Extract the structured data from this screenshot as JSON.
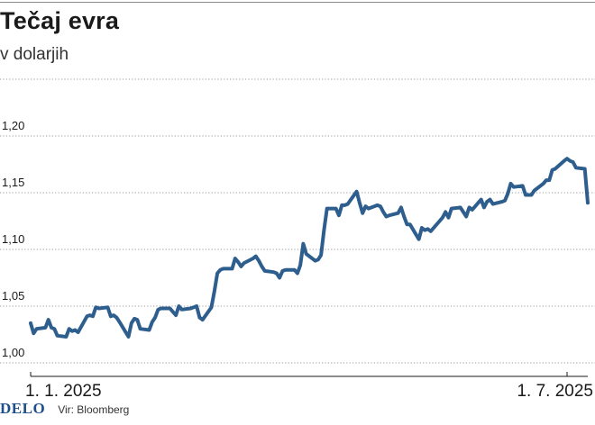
{
  "header": {
    "title": "Tečaj evra",
    "subtitle": "v dolarjih"
  },
  "footer": {
    "logo": "DELO",
    "source": "Vir: Bloomberg"
  },
  "colors": {
    "line": "#2e5e8e",
    "grid": "#7a7a7a",
    "text": "#1a1a1a"
  },
  "chart_data": {
    "type": "line",
    "title": "Tečaj evra",
    "subtitle": "v dolarjih",
    "ylim": [
      1.0,
      1.2
    ],
    "y_ticks": [
      1.0,
      1.05,
      1.1,
      1.15,
      1.2
    ],
    "y_tick_labels": [
      "1,00",
      "1,05",
      "1,10",
      "1,15",
      "1,20"
    ],
    "x_range": [
      "2025-01-01",
      "2025-07-08"
    ],
    "x_ticks": [
      {
        "date": "2025-01-01",
        "label": "1. 1. 2025"
      },
      {
        "date": "2025-07-01",
        "label": "1. 7. 2025"
      }
    ],
    "grid": "horizontal",
    "series": [
      {
        "values": [
          [
            "2025-01-01",
            1.035
          ],
          [
            "2025-01-02",
            1.026
          ],
          [
            "2025-01-03",
            1.03
          ],
          [
            "2025-01-06",
            1.031
          ],
          [
            "2025-01-07",
            1.038
          ],
          [
            "2025-01-08",
            1.031
          ],
          [
            "2025-01-09",
            1.03
          ],
          [
            "2025-01-10",
            1.024
          ],
          [
            "2025-01-13",
            1.023
          ],
          [
            "2025-01-14",
            1.03
          ],
          [
            "2025-01-15",
            1.028
          ],
          [
            "2025-01-16",
            1.029
          ],
          [
            "2025-01-17",
            1.027
          ],
          [
            "2025-01-20",
            1.041
          ],
          [
            "2025-01-21",
            1.042
          ],
          [
            "2025-01-22",
            1.041
          ],
          [
            "2025-01-23",
            1.049
          ],
          [
            "2025-01-24",
            1.048
          ],
          [
            "2025-01-27",
            1.049
          ],
          [
            "2025-01-28",
            1.041
          ],
          [
            "2025-01-29",
            1.042
          ],
          [
            "2025-01-30",
            1.04
          ],
          [
            "2025-01-31",
            1.036
          ],
          [
            "2025-02-03",
            1.023
          ],
          [
            "2025-02-04",
            1.035
          ],
          [
            "2025-02-05",
            1.039
          ],
          [
            "2025-02-06",
            1.038
          ],
          [
            "2025-02-07",
            1.03
          ],
          [
            "2025-02-10",
            1.029
          ],
          [
            "2025-02-11",
            1.036
          ],
          [
            "2025-02-12",
            1.04
          ],
          [
            "2025-02-13",
            1.047
          ],
          [
            "2025-02-14",
            1.048
          ],
          [
            "2025-02-17",
            1.048
          ],
          [
            "2025-02-18",
            1.045
          ],
          [
            "2025-02-19",
            1.042
          ],
          [
            "2025-02-20",
            1.05
          ],
          [
            "2025-02-21",
            1.047
          ],
          [
            "2025-02-24",
            1.048
          ],
          [
            "2025-02-25",
            1.049
          ],
          [
            "2025-02-26",
            1.05
          ],
          [
            "2025-02-27",
            1.04
          ],
          [
            "2025-02-28",
            1.038
          ],
          [
            "2025-03-03",
            1.049
          ],
          [
            "2025-03-04",
            1.063
          ],
          [
            "2025-03-05",
            1.079
          ],
          [
            "2025-03-06",
            1.082
          ],
          [
            "2025-03-07",
            1.083
          ],
          [
            "2025-03-10",
            1.083
          ],
          [
            "2025-03-11",
            1.092
          ],
          [
            "2025-03-12",
            1.089
          ],
          [
            "2025-03-13",
            1.085
          ],
          [
            "2025-03-14",
            1.088
          ],
          [
            "2025-03-17",
            1.092
          ],
          [
            "2025-03-18",
            1.094
          ],
          [
            "2025-03-19",
            1.09
          ],
          [
            "2025-03-20",
            1.085
          ],
          [
            "2025-03-21",
            1.081
          ],
          [
            "2025-03-24",
            1.08
          ],
          [
            "2025-03-25",
            1.079
          ],
          [
            "2025-03-26",
            1.075
          ],
          [
            "2025-03-27",
            1.081
          ],
          [
            "2025-03-28",
            1.082
          ],
          [
            "2025-03-31",
            1.082
          ],
          [
            "2025-04-01",
            1.079
          ],
          [
            "2025-04-02",
            1.086
          ],
          [
            "2025-04-03",
            1.105
          ],
          [
            "2025-04-04",
            1.096
          ],
          [
            "2025-04-07",
            1.09
          ],
          [
            "2025-04-08",
            1.091
          ],
          [
            "2025-04-09",
            1.095
          ],
          [
            "2025-04-10",
            1.117
          ],
          [
            "2025-04-11",
            1.136
          ],
          [
            "2025-04-14",
            1.136
          ],
          [
            "2025-04-15",
            1.13
          ],
          [
            "2025-04-16",
            1.139
          ],
          [
            "2025-04-17",
            1.139
          ],
          [
            "2025-04-18",
            1.14
          ],
          [
            "2025-04-21",
            1.151
          ],
          [
            "2025-04-22",
            1.141
          ],
          [
            "2025-04-23",
            1.132
          ],
          [
            "2025-04-24",
            1.138
          ],
          [
            "2025-04-25",
            1.136
          ],
          [
            "2025-04-28",
            1.139
          ],
          [
            "2025-04-29",
            1.138
          ],
          [
            "2025-04-30",
            1.133
          ],
          [
            "2025-05-01",
            1.129
          ],
          [
            "2025-05-02",
            1.13
          ],
          [
            "2025-05-05",
            1.132
          ],
          [
            "2025-05-06",
            1.137
          ],
          [
            "2025-05-07",
            1.129
          ],
          [
            "2025-05-08",
            1.122
          ],
          [
            "2025-05-09",
            1.122
          ],
          [
            "2025-05-12",
            1.109
          ],
          [
            "2025-05-13",
            1.119
          ],
          [
            "2025-05-14",
            1.117
          ],
          [
            "2025-05-15",
            1.118
          ],
          [
            "2025-05-16",
            1.116
          ],
          [
            "2025-05-19",
            1.125
          ],
          [
            "2025-05-20",
            1.128
          ],
          [
            "2025-05-21",
            1.133
          ],
          [
            "2025-05-22",
            1.128
          ],
          [
            "2025-05-23",
            1.136
          ],
          [
            "2025-05-26",
            1.137
          ],
          [
            "2025-05-27",
            1.133
          ],
          [
            "2025-05-28",
            1.129
          ],
          [
            "2025-05-29",
            1.137
          ],
          [
            "2025-05-30",
            1.135
          ],
          [
            "2025-06-02",
            1.144
          ],
          [
            "2025-06-03",
            1.137
          ],
          [
            "2025-06-04",
            1.142
          ],
          [
            "2025-06-05",
            1.144
          ],
          [
            "2025-06-06",
            1.14
          ],
          [
            "2025-06-09",
            1.142
          ],
          [
            "2025-06-10",
            1.143
          ],
          [
            "2025-06-11",
            1.149
          ],
          [
            "2025-06-12",
            1.158
          ],
          [
            "2025-06-13",
            1.155
          ],
          [
            "2025-06-16",
            1.156
          ],
          [
            "2025-06-17",
            1.148
          ],
          [
            "2025-06-18",
            1.148
          ],
          [
            "2025-06-19",
            1.148
          ],
          [
            "2025-06-20",
            1.152
          ],
          [
            "2025-06-23",
            1.158
          ],
          [
            "2025-06-24",
            1.161
          ],
          [
            "2025-06-25",
            1.161
          ],
          [
            "2025-06-26",
            1.17
          ],
          [
            "2025-06-27",
            1.171
          ],
          [
            "2025-06-30",
            1.178
          ],
          [
            "2025-07-01",
            1.18
          ],
          [
            "2025-07-02",
            1.178
          ],
          [
            "2025-07-03",
            1.177
          ],
          [
            "2025-07-04",
            1.172
          ],
          [
            "2025-07-07",
            1.171
          ],
          [
            "2025-07-08",
            1.141
          ]
        ]
      }
    ]
  }
}
